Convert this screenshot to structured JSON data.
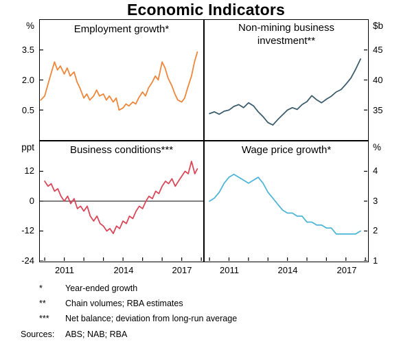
{
  "title": "Economic Indicators",
  "units": {
    "top_left": "%",
    "top_right": "$b",
    "mid_left": "ppt",
    "mid_right": "%"
  },
  "xticks": [
    "2011",
    "2014",
    "2017"
  ],
  "footnotes": [
    {
      "marker": "*",
      "text": "Year-ended growth"
    },
    {
      "marker": "**",
      "text": "Chain volumes; RBA estimates"
    },
    {
      "marker": "***",
      "text": "Net balance; deviation from long-run average"
    }
  ],
  "sources": {
    "label": "Sources:",
    "text": "ABS; NAB; RBA"
  },
  "chart_data": {
    "type": "line",
    "layout": "2x2-panels",
    "title": "Economic Indicators",
    "x_range": [
      2009.75,
      2018.1
    ],
    "x_tick_label_years": [
      2011,
      2014,
      2017
    ],
    "x_minor_ticks": [
      2010,
      2011,
      2012,
      2013,
      2014,
      2015,
      2016,
      2017,
      2018
    ],
    "line_width": 1.8,
    "panels": [
      {
        "title": "Employment growth*",
        "unit": "%",
        "axis_side": "left",
        "ylim": [
          -1,
          5
        ],
        "yticks": [
          3.5,
          2.0,
          0.5
        ],
        "ytick_labels": [
          "3.5",
          "2.0",
          "0.5"
        ],
        "color": "#f0863a",
        "zero_line": false,
        "x_ticks_bottom": false,
        "series": {
          "name": "Employment growth (year-ended, %)",
          "x": [
            2009.8,
            2010.0,
            2010.2,
            2010.35,
            2010.5,
            2010.65,
            2010.8,
            2011.0,
            2011.15,
            2011.3,
            2011.5,
            2011.65,
            2011.8,
            2012.0,
            2012.15,
            2012.3,
            2012.5,
            2012.65,
            2012.8,
            2013.0,
            2013.15,
            2013.3,
            2013.5,
            2013.65,
            2013.8,
            2014.0,
            2014.15,
            2014.3,
            2014.5,
            2014.65,
            2014.8,
            2015.0,
            2015.15,
            2015.3,
            2015.5,
            2015.65,
            2015.8,
            2016.0,
            2016.15,
            2016.3,
            2016.5,
            2016.65,
            2016.8,
            2017.0,
            2017.15,
            2017.3,
            2017.5,
            2017.65,
            2017.8
          ],
          "y": [
            1.0,
            1.2,
            1.9,
            2.4,
            2.9,
            2.5,
            2.7,
            2.3,
            2.6,
            2.2,
            2.4,
            1.9,
            1.6,
            1.1,
            1.3,
            1.0,
            1.2,
            1.5,
            1.2,
            1.3,
            1.0,
            1.2,
            0.9,
            1.1,
            0.5,
            0.6,
            0.8,
            0.7,
            0.9,
            0.8,
            1.1,
            1.4,
            1.2,
            1.6,
            1.9,
            2.2,
            2.0,
            2.9,
            2.6,
            2.1,
            1.7,
            1.3,
            1.0,
            0.9,
            1.1,
            1.6,
            2.2,
            2.9,
            3.4
          ]
        }
      },
      {
        "title": "Non-mining business investment**",
        "unit": "$b",
        "axis_side": "right",
        "ylim": [
          30,
          50
        ],
        "yticks": [
          45,
          40,
          35
        ],
        "ytick_labels": [
          "45",
          "40",
          "35"
        ],
        "color": "#3d5d6e",
        "zero_line": false,
        "x_ticks_bottom": false,
        "series": {
          "name": "Non-mining business investment (chain volumes, $b)",
          "x": [
            2010.0,
            2010.25,
            2010.5,
            2010.75,
            2011.0,
            2011.25,
            2011.5,
            2011.75,
            2012.0,
            2012.25,
            2012.5,
            2012.75,
            2013.0,
            2013.25,
            2013.5,
            2013.75,
            2014.0,
            2014.25,
            2014.5,
            2014.75,
            2015.0,
            2015.25,
            2015.5,
            2015.75,
            2016.0,
            2016.25,
            2016.5,
            2016.75,
            2017.0,
            2017.25,
            2017.5,
            2017.75
          ],
          "y": [
            34.4,
            34.7,
            34.3,
            34.8,
            35.0,
            35.6,
            35.9,
            35.4,
            36.2,
            35.7,
            34.7,
            33.9,
            32.9,
            32.5,
            33.4,
            34.2,
            35.0,
            35.4,
            35.1,
            35.9,
            36.4,
            37.4,
            36.7,
            36.2,
            36.8,
            37.3,
            38.0,
            38.4,
            39.3,
            40.3,
            41.8,
            43.5
          ]
        }
      },
      {
        "title": "Business conditions***",
        "unit": "ppt",
        "axis_side": "left",
        "ylim": [
          -24,
          24
        ],
        "yticks": [
          12,
          0,
          -12,
          -24
        ],
        "ytick_labels": [
          "12",
          "0",
          "-12",
          "-24"
        ],
        "color": "#da4859",
        "zero_line": true,
        "x_ticks_bottom": true,
        "series": {
          "name": "Business conditions (net balance, ppt)",
          "x": [
            2010.0,
            2010.17,
            2010.33,
            2010.5,
            2010.67,
            2010.83,
            2011.0,
            2011.17,
            2011.33,
            2011.5,
            2011.67,
            2011.83,
            2012.0,
            2012.17,
            2012.33,
            2012.5,
            2012.67,
            2012.83,
            2013.0,
            2013.17,
            2013.33,
            2013.5,
            2013.67,
            2013.83,
            2014.0,
            2014.17,
            2014.33,
            2014.5,
            2014.67,
            2014.83,
            2015.0,
            2015.17,
            2015.33,
            2015.5,
            2015.67,
            2015.83,
            2016.0,
            2016.17,
            2016.33,
            2016.5,
            2016.67,
            2016.83,
            2017.0,
            2017.17,
            2017.33,
            2017.5,
            2017.67,
            2017.8
          ],
          "y": [
            8,
            6,
            7,
            4,
            5,
            2,
            0,
            2,
            -1,
            1,
            -3,
            -2,
            -4,
            -2,
            -6,
            -8,
            -6,
            -9,
            -10,
            -12,
            -11,
            -13,
            -10,
            -11,
            -8,
            -9,
            -6,
            -7,
            -4,
            -2,
            -3,
            0,
            2,
            1,
            4,
            3,
            6,
            8,
            7,
            9,
            6,
            8,
            10,
            12,
            11,
            16,
            11,
            13
          ]
        }
      },
      {
        "title": "Wage price growth*",
        "unit": "%",
        "axis_side": "right",
        "ylim": [
          1,
          5
        ],
        "yticks": [
          4,
          3,
          2,
          1
        ],
        "ytick_labels": [
          "4",
          "3",
          "2",
          "1"
        ],
        "color": "#4fb6d8",
        "zero_line": false,
        "x_ticks_bottom": true,
        "series": {
          "name": "Wage price growth (year-ended, %)",
          "x": [
            2010.0,
            2010.25,
            2010.5,
            2010.75,
            2011.0,
            2011.25,
            2011.5,
            2011.75,
            2012.0,
            2012.25,
            2012.5,
            2012.75,
            2013.0,
            2013.25,
            2013.5,
            2013.75,
            2014.0,
            2014.25,
            2014.5,
            2014.75,
            2015.0,
            2015.25,
            2015.5,
            2015.75,
            2016.0,
            2016.25,
            2016.5,
            2016.75,
            2017.0,
            2017.25,
            2017.5,
            2017.75
          ],
          "y": [
            3.0,
            3.1,
            3.3,
            3.6,
            3.8,
            3.9,
            3.8,
            3.7,
            3.6,
            3.7,
            3.8,
            3.6,
            3.3,
            3.1,
            2.9,
            2.7,
            2.6,
            2.6,
            2.5,
            2.5,
            2.3,
            2.3,
            2.2,
            2.2,
            2.1,
            2.1,
            1.9,
            1.9,
            1.9,
            1.9,
            1.9,
            2.0
          ]
        }
      }
    ]
  }
}
